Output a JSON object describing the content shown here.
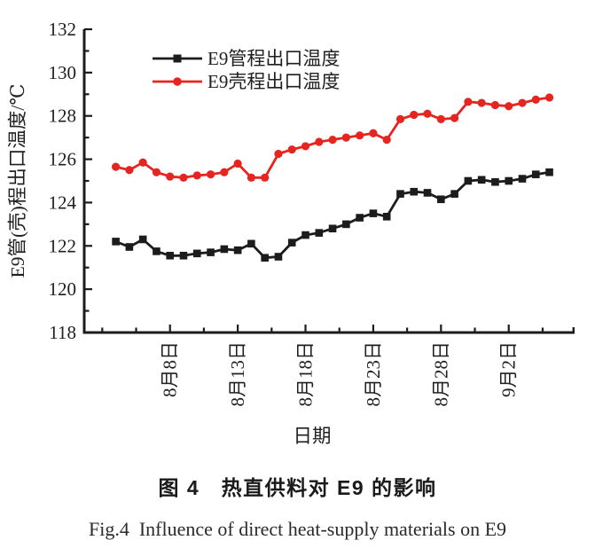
{
  "figure": {
    "caption_zh": "图 4　热直供料对 E9 的影响",
    "caption_en": "Fig.4  Influence of direct heat-supply materials on E9"
  },
  "chart_data": {
    "type": "line",
    "title": "",
    "xlabel": "日期",
    "ylabel": "E9管(壳)程出口温度/℃",
    "ylim": [
      118,
      132
    ],
    "y_major_ticks": [
      118,
      120,
      122,
      124,
      126,
      128,
      130,
      132
    ],
    "x_tick_labels": [
      "8月8日",
      "8月13日",
      "8月18日",
      "8月23日",
      "8月28日",
      "9月2日"
    ],
    "x_tick_day_indices": [
      4,
      9,
      14,
      19,
      24,
      29
    ],
    "points_per_series": 33,
    "x_spacing": "daily",
    "grid": false,
    "legend_position": "inside-top-left",
    "series": [
      {
        "name": "E9管程出口温度",
        "color": "#1c1c1c",
        "marker": "square",
        "values": [
          122.2,
          121.95,
          122.3,
          121.75,
          121.55,
          121.55,
          121.65,
          121.7,
          121.85,
          121.8,
          122.1,
          121.45,
          121.5,
          122.15,
          122.5,
          122.6,
          122.8,
          123.0,
          123.3,
          123.5,
          123.35,
          124.4,
          124.5,
          124.45,
          124.15,
          124.4,
          125.0,
          125.05,
          124.95,
          125.0,
          125.1,
          125.3,
          125.4
        ]
      },
      {
        "name": "E9壳程出口温度",
        "color": "#e62420",
        "marker": "circle",
        "values": [
          125.65,
          125.5,
          125.85,
          125.4,
          125.2,
          125.15,
          125.25,
          125.3,
          125.4,
          125.8,
          125.15,
          125.15,
          126.25,
          126.45,
          126.6,
          126.8,
          126.9,
          127.0,
          127.1,
          127.2,
          126.9,
          127.85,
          128.05,
          128.1,
          127.85,
          127.9,
          128.65,
          128.6,
          128.5,
          128.45,
          128.6,
          128.75,
          128.85
        ]
      }
    ]
  }
}
